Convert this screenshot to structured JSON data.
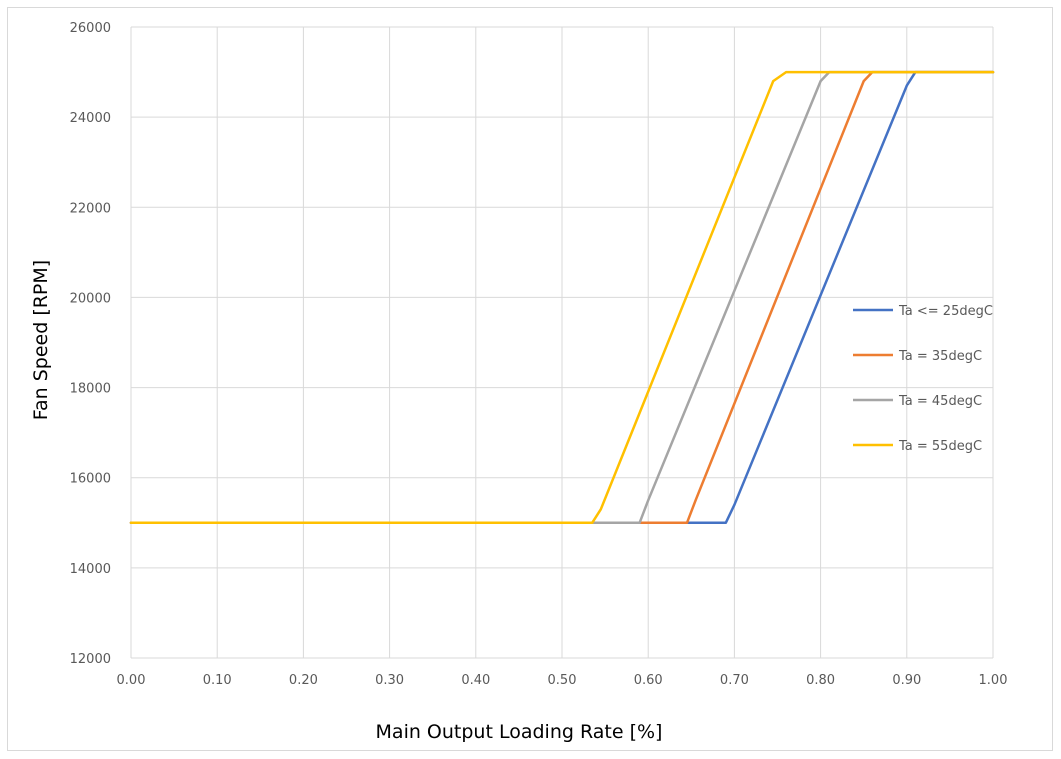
{
  "chart_data": {
    "type": "line",
    "title": "",
    "xlabel": "Main Output Loading Rate [%]",
    "ylabel": "Fan Speed [RPM]",
    "xlim": [
      0.0,
      1.0
    ],
    "ylim": [
      12000,
      26000
    ],
    "x_ticks": [
      "0.00",
      "0.10",
      "0.20",
      "0.30",
      "0.40",
      "0.50",
      "0.60",
      "0.70",
      "0.80",
      "0.90",
      "1.00"
    ],
    "y_ticks": [
      "12000",
      "14000",
      "16000",
      "18000",
      "20000",
      "22000",
      "24000",
      "26000"
    ],
    "grid": true,
    "legend_position": "right",
    "series": [
      {
        "name": "Ta <= 25degC",
        "color": "#4472C4",
        "points": [
          [
            0.0,
            15000
          ],
          [
            0.69,
            15000
          ],
          [
            0.7,
            15400
          ],
          [
            0.9,
            24700
          ],
          [
            0.91,
            25000
          ],
          [
            1.0,
            25000
          ]
        ]
      },
      {
        "name": "Ta = 35degC",
        "color": "#ED7D31",
        "points": [
          [
            0.0,
            15000
          ],
          [
            0.645,
            15000
          ],
          [
            0.655,
            15500
          ],
          [
            0.85,
            24800
          ],
          [
            0.86,
            25000
          ],
          [
            1.0,
            25000
          ]
        ]
      },
      {
        "name": "Ta = 45degC",
        "color": "#A5A5A5",
        "points": [
          [
            0.0,
            15000
          ],
          [
            0.59,
            15000
          ],
          [
            0.6,
            15500
          ],
          [
            0.8,
            24800
          ],
          [
            0.81,
            25000
          ],
          [
            1.0,
            25000
          ]
        ]
      },
      {
        "name": "Ta = 55degC",
        "color": "#FFC000",
        "points": [
          [
            0.0,
            15000
          ],
          [
            0.535,
            15000
          ],
          [
            0.545,
            15300
          ],
          [
            0.745,
            24800
          ],
          [
            0.76,
            25000
          ],
          [
            1.0,
            25000
          ]
        ]
      }
    ]
  }
}
